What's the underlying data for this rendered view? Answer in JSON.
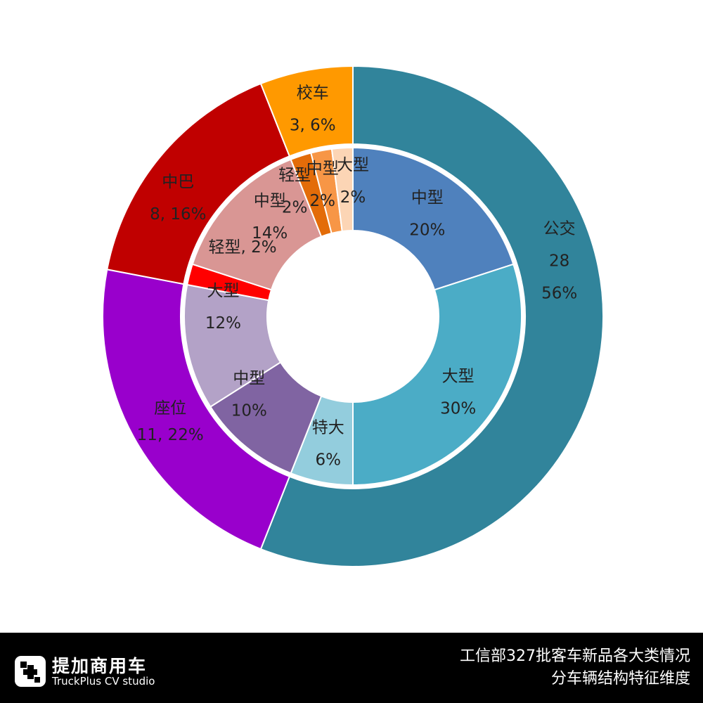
{
  "chart_data": {
    "type": "pie",
    "variant": "nested-donut",
    "outer_ring": [
      {
        "name": "公交",
        "label_lines": [
          "公交",
          "28",
          "56%"
        ],
        "value": 28,
        "percent": 56,
        "color": "#31849b"
      },
      {
        "name": "座位",
        "label_lines": [
          "座位",
          "11, 22%"
        ],
        "value": 11,
        "percent": 22,
        "color": "#9900cc"
      },
      {
        "name": "中巴",
        "label_lines": [
          "中巴",
          "8, 16%"
        ],
        "value": 8,
        "percent": 16,
        "color": "#c00000"
      },
      {
        "name": "校车",
        "label_lines": [
          "校车",
          "3, 6%"
        ],
        "value": 3,
        "percent": 6,
        "color": "#ff9900"
      }
    ],
    "inner_ring": [
      {
        "group": "公交",
        "name": "中型",
        "label_lines": [
          "中型",
          "20%"
        ],
        "percent": 20,
        "color": "#4f81bd"
      },
      {
        "group": "公交",
        "name": "大型",
        "label_lines": [
          "大型",
          "30%"
        ],
        "percent": 30,
        "color": "#4bacc6"
      },
      {
        "group": "公交",
        "name": "特大",
        "label_lines": [
          "特大",
          "6%"
        ],
        "percent": 6,
        "color": "#93cddd"
      },
      {
        "group": "座位",
        "name": "中型",
        "label_lines": [
          "中型",
          "10%"
        ],
        "percent": 10,
        "color": "#8064a2"
      },
      {
        "group": "座位",
        "name": "大型",
        "label_lines": [
          "大型",
          "12%"
        ],
        "percent": 12,
        "color": "#b3a2c7"
      },
      {
        "group": "中巴",
        "name": "轻型",
        "label_lines": [
          "轻型, 2%"
        ],
        "percent": 2,
        "color": "#ff0000"
      },
      {
        "group": "中巴",
        "name": "中型",
        "label_lines": [
          "中型",
          "14%"
        ],
        "percent": 14,
        "color": "#d99694"
      },
      {
        "group": "校车",
        "name": "轻型",
        "label_lines": [
          "轻型",
          "2%"
        ],
        "percent": 2,
        "color": "#e36c09"
      },
      {
        "group": "校车",
        "name": "中型",
        "label_lines": [
          "中型",
          "2%"
        ],
        "percent": 2,
        "color": "#f79646"
      },
      {
        "group": "校车",
        "name": "大型",
        "label_lines": [
          "大型",
          "2%"
        ],
        "percent": 2,
        "color": "#fcd5b5"
      }
    ],
    "start_angle": "12 o'clock, clockwise",
    "legend": "none"
  },
  "footer": {
    "logo_cn": "提加商用车",
    "logo_en": "TruckPlus CV studio",
    "caption_line1": "工信部327批客车新品各大类情况",
    "caption_line2": "分车辆结构特征维度"
  },
  "colors": {
    "background": "#ffffff",
    "footer_background": "#000000",
    "footer_text": "#ffffff"
  }
}
